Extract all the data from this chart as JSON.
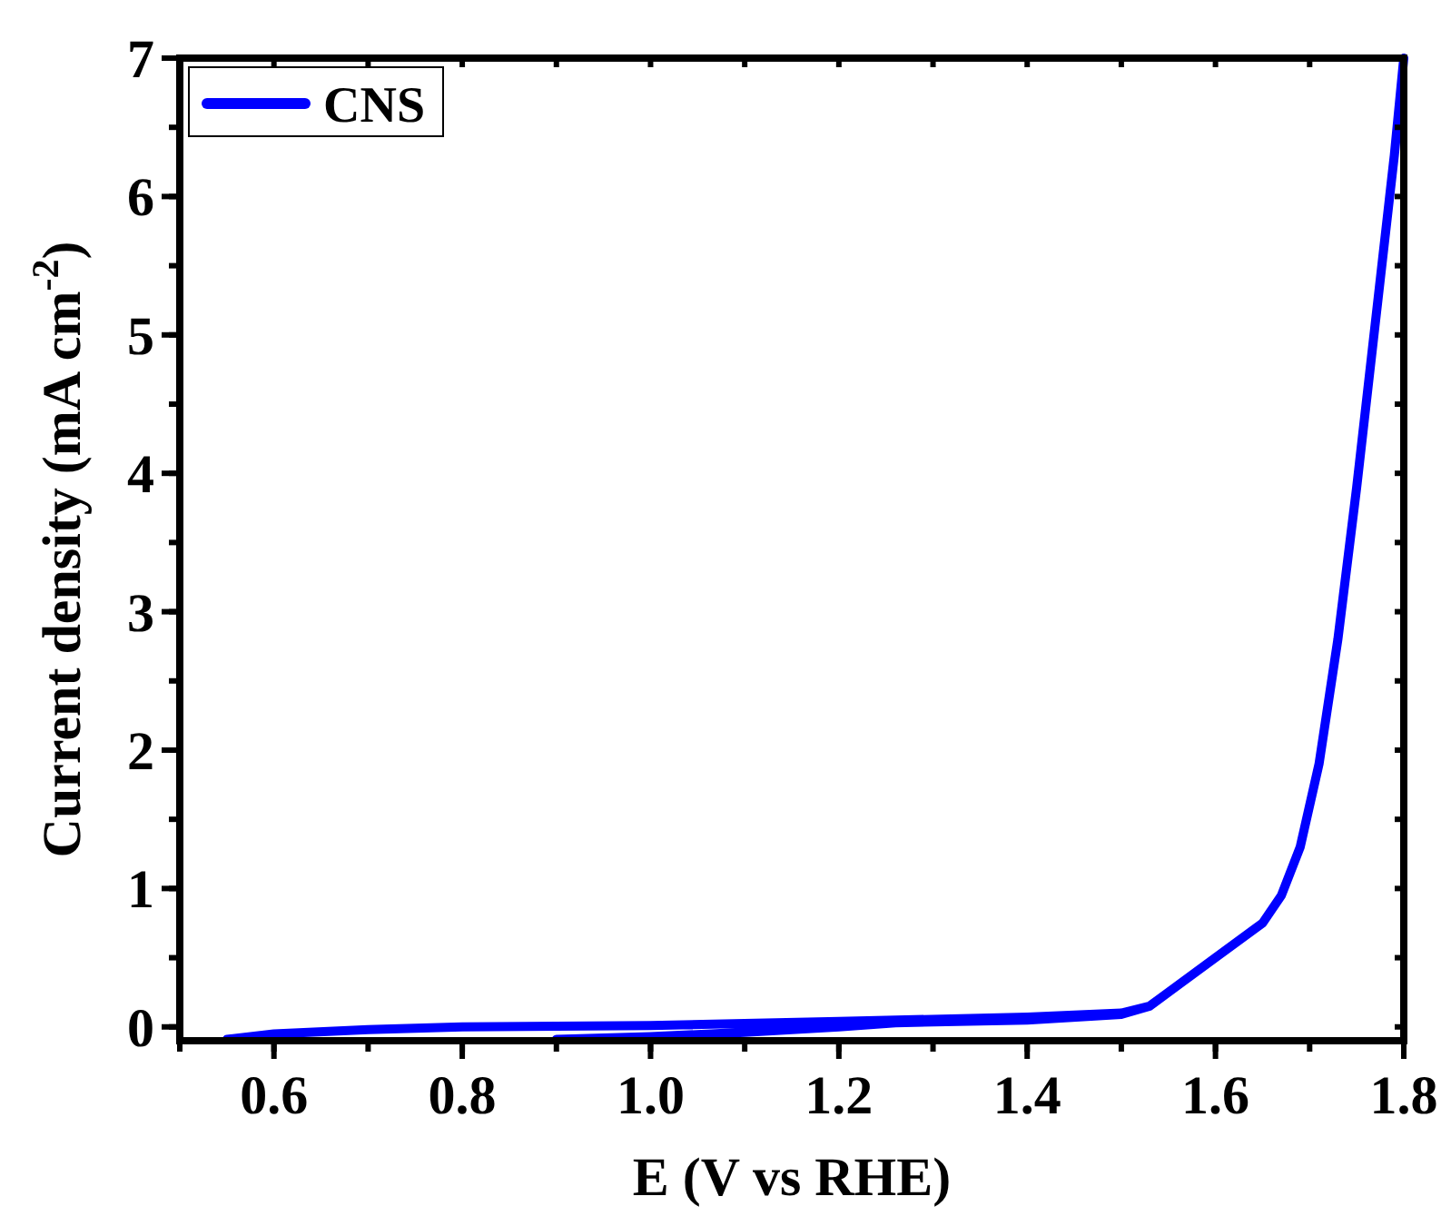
{
  "chart_data": {
    "type": "line",
    "xlabel": "E (V vs RHE)",
    "ylabel": "Current density (mA cm$^{-2}$)",
    "xlim": [
      0.5,
      1.8
    ],
    "ylim": [
      -0.1,
      7
    ],
    "xticks": [
      0.6,
      0.8,
      {
        "value": 1,
        "label": "1.0"
      },
      1.2,
      1.4,
      1.6,
      1.8
    ],
    "yticks": [
      0,
      1,
      2,
      3,
      4,
      5,
      6,
      7
    ],
    "legend": "top left",
    "grid": false,
    "marker": "none",
    "line_style": "solid",
    "series": [
      {
        "name": "CNS",
        "color": "#0000ff",
        "x": [
          0.55,
          0.6,
          0.7,
          0.8,
          1.0,
          1.2,
          1.4,
          1.5,
          1.53,
          1.56,
          1.6,
          1.65,
          1.67,
          1.69,
          1.71,
          1.73,
          1.75,
          1.77,
          1.79,
          1.8,
          1.79,
          1.77,
          1.75,
          1.73,
          1.71,
          1.69,
          1.67,
          1.65,
          1.6,
          1.56,
          1.53,
          1.5,
          1.4,
          1.26,
          1.2,
          1.1,
          1.0,
          0.9
        ],
        "values": [
          -0.09,
          -0.05,
          -0.02,
          0,
          0.01,
          0.04,
          0.07,
          0.1,
          0.15,
          0.3,
          0.5,
          0.75,
          0.95,
          1.3,
          1.9,
          2.8,
          3.9,
          5.1,
          6.3,
          7.0,
          6.3,
          5.1,
          3.9,
          2.8,
          1.9,
          1.3,
          0.95,
          0.75,
          0.5,
          0.3,
          0.15,
          0.09,
          0.05,
          0.03,
          0.0,
          -0.04,
          -0.07,
          -0.09
        ]
      }
    ]
  }
}
